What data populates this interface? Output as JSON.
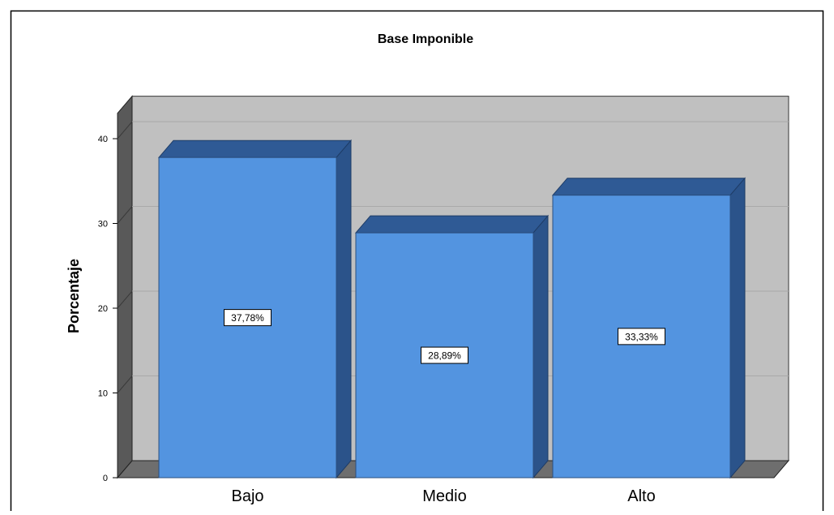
{
  "chart_data": {
    "type": "bar",
    "title": "Base Imponible",
    "xlabel": "",
    "ylabel": "Porcentaje",
    "categories": [
      "Bajo",
      "Medio",
      "Alto"
    ],
    "values": [
      37.78,
      28.89,
      33.33
    ],
    "data_labels": [
      "37,78%",
      "28,89%",
      "33,33%"
    ],
    "ylim": [
      0,
      43
    ],
    "yticks": [
      0,
      10,
      20,
      30,
      40
    ],
    "ytick_labels": [
      "0",
      "10",
      "20",
      "30",
      "40"
    ],
    "grid": true,
    "style": "3d",
    "colors": {
      "bar_front": "#5394e0",
      "bar_top": "#2f5a95",
      "bar_side": "#2b538a",
      "plot_background": "#c0c0c0",
      "back_wall_side": "#595959",
      "floor": "#6e6e6e"
    }
  }
}
